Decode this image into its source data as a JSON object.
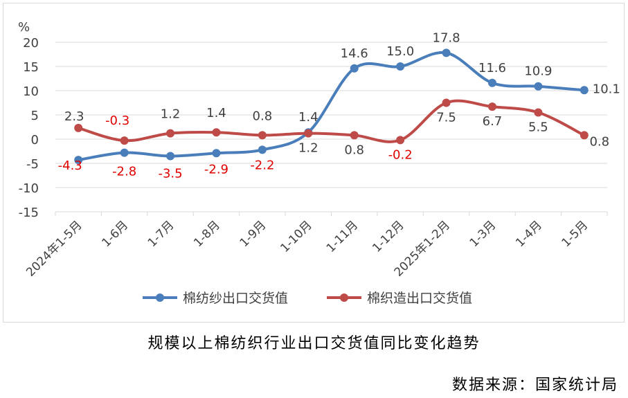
{
  "chart_data": {
    "type": "line",
    "title": "",
    "ylabel": "%",
    "xlabel": "",
    "ylim": [
      -15,
      20
    ],
    "yticks": [
      20,
      15,
      10,
      5,
      0,
      -5,
      -10,
      -15
    ],
    "grid": true,
    "legend_position": "bottom",
    "categories": [
      "2024年1-5月",
      "1-6月",
      "1-7月",
      "1-8月",
      "1-9月",
      "1-10月",
      "1-11月",
      "1-12月",
      "2025年1-2月",
      "1-3月",
      "1-4月",
      "1-5月"
    ],
    "series": [
      {
        "name": "棉纺纱出口交货值",
        "color": "#4a7ebb",
        "values": [
          -4.3,
          -2.8,
          -3.5,
          -2.9,
          -2.2,
          1.4,
          14.6,
          15.0,
          17.8,
          11.6,
          10.9,
          10.1
        ],
        "labels": [
          "-4.3",
          "-2.8",
          "-3.5",
          "-2.9",
          "-2.2",
          "1.4",
          "14.6",
          "15.0",
          "17.8",
          "11.6",
          "10.9",
          "10.1"
        ]
      },
      {
        "name": "棉织造出口交货值",
        "color": "#be4b48",
        "values": [
          2.3,
          -0.3,
          1.2,
          1.4,
          0.8,
          1.2,
          0.8,
          -0.2,
          7.5,
          6.7,
          5.5,
          0.8
        ],
        "labels": [
          "2.3",
          "-0.3",
          "1.2",
          "1.4",
          "0.8",
          "1.2",
          "0.8",
          "-0.2",
          "7.5",
          "6.7",
          "5.5",
          "0.8"
        ]
      }
    ]
  },
  "caption": "规模以上棉纺织行业出口交货值同比变化趋势",
  "source": "数据来源：国家统计局",
  "colors": {
    "negative_label": "#e00000",
    "label": "#404040",
    "grid": "#d9d9d9"
  }
}
